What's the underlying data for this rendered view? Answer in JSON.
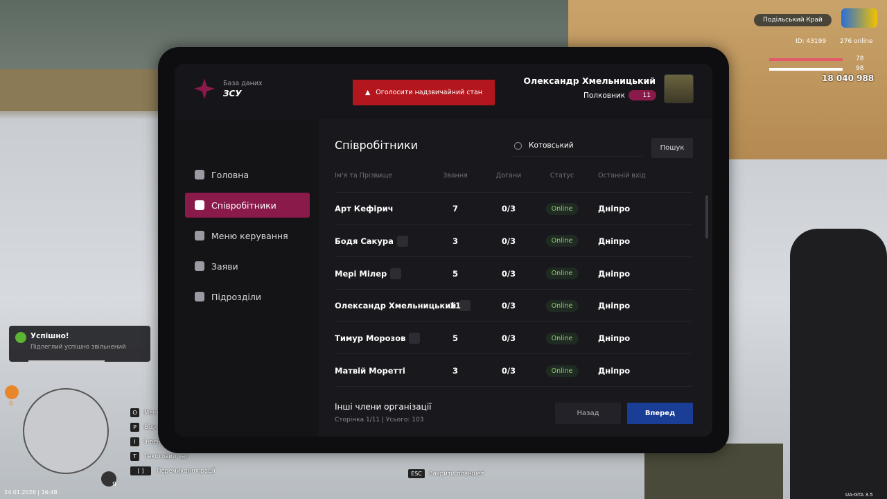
{
  "hud": {
    "server": "Подільський Край",
    "id": "ID: 43199",
    "online": "276 online",
    "health": "78",
    "armor": "98",
    "money": "18 040 988",
    "notification": {
      "title": "Успішно!",
      "text": "Підлеглий успішно звільнений"
    },
    "counter": "0",
    "hints": [
      {
        "key": "O",
        "label": "Мені"
      },
      {
        "key": "P",
        "label": "Відк"
      },
      {
        "key": "I",
        "label": "Інвент"
      },
      {
        "key": "T",
        "label": "Текстовий чат"
      },
      {
        "key": "[ ]",
        "label": "Перемикання рації"
      }
    ],
    "mic": "Я",
    "datetime": "24.01.2026 | 16:48",
    "version": "UA-GTA 3.5",
    "esc": {
      "key": "ESC",
      "label": "Закрити планшет"
    }
  },
  "tablet": {
    "header": {
      "subtitle": "База даних",
      "title": "ЗСУ",
      "emergency": "Оголосити надзвичайний стан",
      "user": {
        "name": "Олександр Хмельницький",
        "rank": "Полковник",
        "level": "11"
      }
    },
    "nav": [
      "Головна",
      "Співробітники",
      "Меню керування",
      "Заяви",
      "Підрозділи"
    ],
    "nav_active": 1,
    "content": {
      "title": "Співробітники",
      "search": "Котовський",
      "search_button": "Пошук",
      "columns": [
        "Ім'я та Прізвище",
        "Звання",
        "Догани",
        "Статус",
        "Останній вхід"
      ],
      "rows": [
        {
          "name": "Арт Кефірич",
          "badge": false,
          "rank": "7",
          "reprimands": "0/3",
          "status": "Online",
          "last": "Дніпро"
        },
        {
          "name": "Бодя Сакура",
          "badge": true,
          "rank": "3",
          "reprimands": "0/3",
          "status": "Online",
          "last": "Дніпро"
        },
        {
          "name": "Мері Мілер",
          "badge": true,
          "rank": "5",
          "reprimands": "0/3",
          "status": "Online",
          "last": "Дніпро"
        },
        {
          "name": "Олександр Хмельницький",
          "badge": true,
          "rank": "11",
          "reprimands": "0/3",
          "status": "Online",
          "last": "Дніпро"
        },
        {
          "name": "Тимур Морозов",
          "badge": true,
          "rank": "5",
          "reprimands": "0/3",
          "status": "Online",
          "last": "Дніпро"
        },
        {
          "name": "Матвій Моретті",
          "badge": false,
          "rank": "3",
          "reprimands": "0/3",
          "status": "Online",
          "last": "Дніпро"
        }
      ],
      "footer": {
        "title": "Інші члени організації",
        "info": "Сторінка 1/11 | Усього: 103",
        "prev": "Назад",
        "next": "Вперед"
      }
    }
  }
}
